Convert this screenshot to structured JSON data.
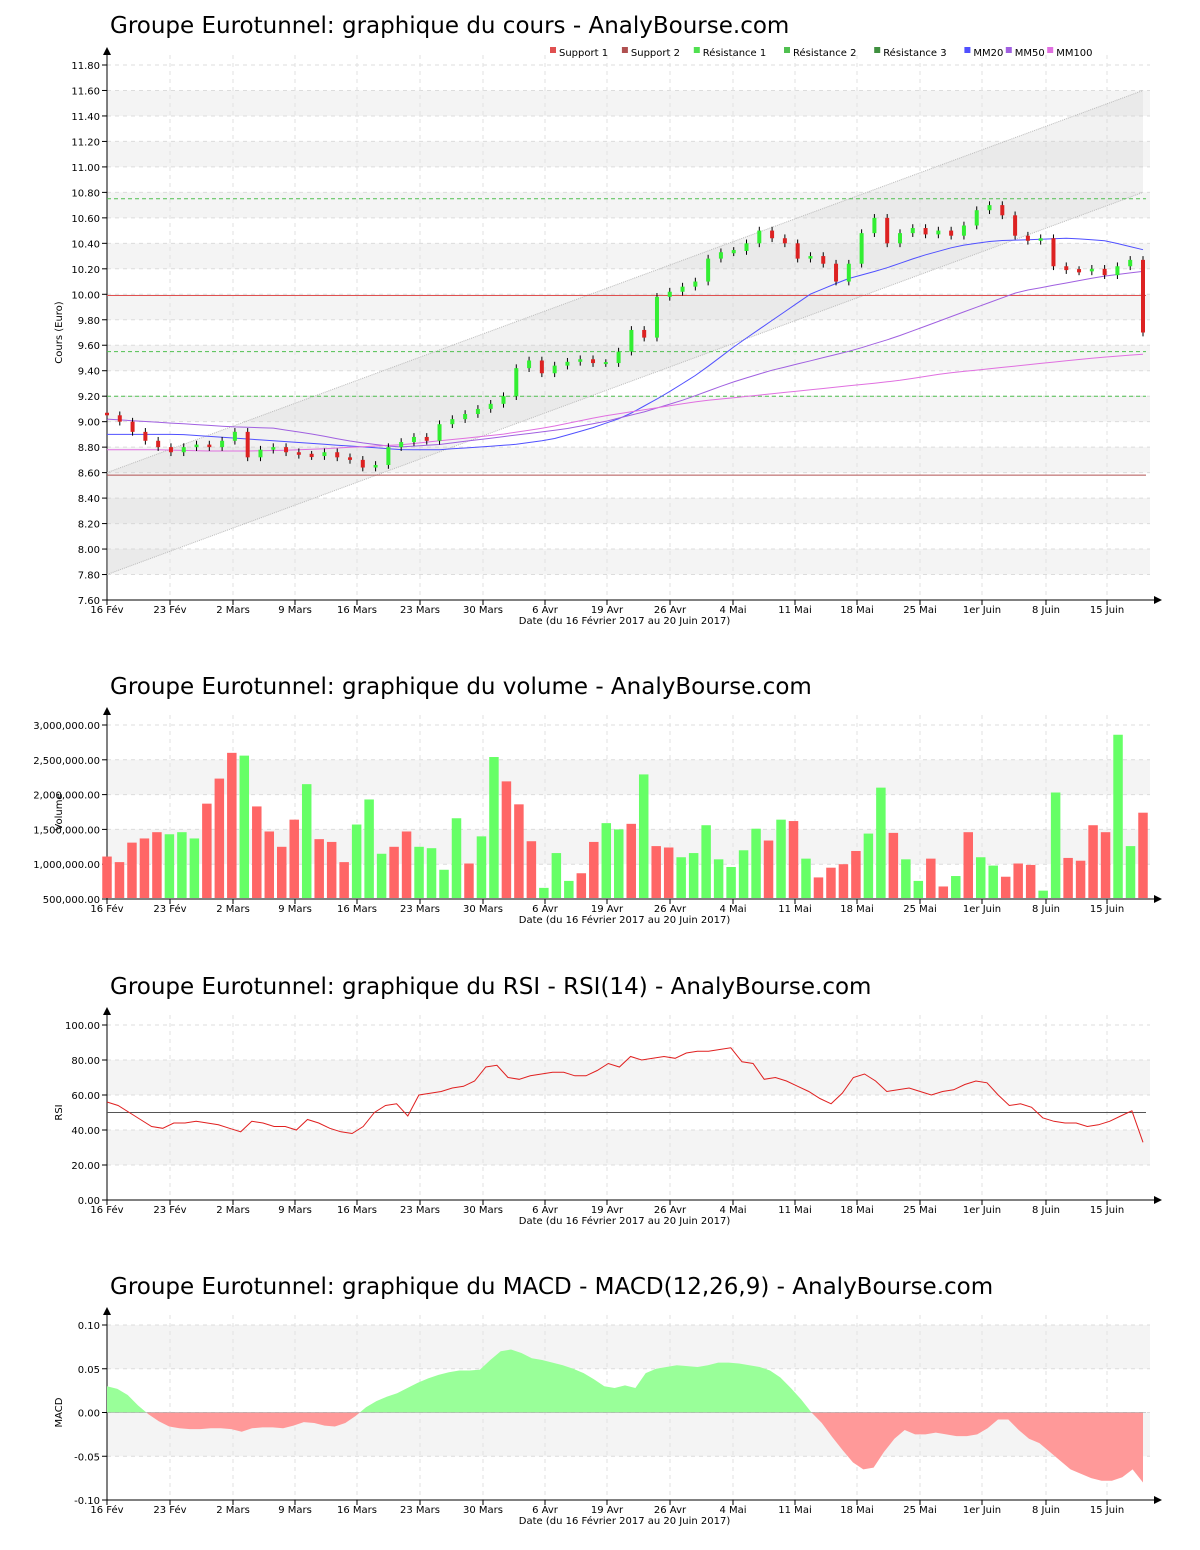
{
  "chart_data": [
    {
      "type": "candlestick",
      "title": "Groupe Eurotunnel: graphique du cours - AnalyBourse.com",
      "xlabel": "Date (du 16 Février 2017 au 20 Juin 2017)",
      "ylabel": "Cours (Euro)",
      "ylim": [
        7.6,
        11.8
      ],
      "yticks": [
        "7.60",
        "7.80",
        "8.00",
        "8.20",
        "8.40",
        "8.60",
        "8.80",
        "9.00",
        "9.20",
        "9.40",
        "9.60",
        "9.80",
        "10.00",
        "10.20",
        "10.40",
        "10.60",
        "10.80",
        "11.00",
        "11.20",
        "11.40",
        "11.60",
        "11.80"
      ],
      "x_tick_labels": [
        "16 Fév",
        "23 Fév",
        "2 Mars",
        "9 Mars",
        "16 Mars",
        "23 Mars",
        "30 Mars",
        "6 Avr",
        "19 Avr",
        "26 Avr",
        "4 Mai",
        "11 Mai",
        "18 Mai",
        "25 Mai",
        "1er Juin",
        "8 Juin",
        "15 Juin"
      ],
      "x_tick_index": [
        0,
        7,
        14,
        21,
        28,
        35,
        42,
        49,
        56,
        63,
        70,
        77,
        84,
        91,
        98,
        105,
        112
      ],
      "n": 118,
      "legend": [
        "Support 1",
        "Support 2",
        "Résistance 1",
        "Résistance 2",
        "Résistance 3",
        "MM20",
        "MM50",
        "MM100"
      ],
      "legend_colors": [
        "#e05050",
        "#b05050",
        "#50e050",
        "#50c050",
        "#409040",
        "#5050ff",
        "#a060e0",
        "#e070e0"
      ],
      "levels": [
        {
          "name": "Support 1",
          "value": 9.99,
          "color": "#e05050",
          "dashed": false
        },
        {
          "name": "Support 2",
          "value": 8.58,
          "color": "#b05050",
          "dashed": false
        },
        {
          "name": "Résistance 1",
          "value": 9.2,
          "color": "#50c050",
          "dashed": true
        },
        {
          "name": "Résistance 2",
          "value": 9.55,
          "color": "#50c050",
          "dashed": true
        },
        {
          "name": "Résistance 3",
          "value": 10.75,
          "color": "#50c050",
          "dashed": true
        }
      ],
      "channel": {
        "lower": [
          7.8,
          10.8
        ],
        "upper": [
          8.6,
          11.6
        ]
      },
      "close": [
        9.05,
        9.0,
        8.92,
        8.85,
        8.8,
        8.76,
        8.8,
        8.82,
        8.8,
        8.85,
        8.92,
        8.72,
        8.78,
        8.8,
        8.76,
        8.74,
        8.73,
        8.76,
        8.72,
        8.7,
        8.64,
        8.66,
        8.8,
        8.84,
        8.88,
        8.85,
        8.98,
        9.02,
        9.06,
        9.1,
        9.14,
        9.2,
        9.42,
        9.48,
        9.38,
        9.44,
        9.47,
        9.49,
        9.46,
        9.46,
        9.55,
        9.72,
        9.66,
        9.98,
        10.02,
        10.06,
        10.1,
        10.28,
        10.33,
        10.34,
        10.4,
        10.5,
        10.44,
        10.4,
        10.28,
        10.3,
        10.24,
        10.1,
        10.24,
        10.48,
        10.6,
        10.4,
        10.48,
        10.52,
        10.47,
        10.5,
        10.46,
        10.54,
        10.66,
        10.7,
        10.62,
        10.46,
        10.42,
        10.44,
        10.22,
        10.19,
        10.18,
        10.2,
        10.15,
        10.22,
        10.27,
        9.7
      ],
      "ma20": [
        8.9,
        8.9,
        8.9,
        8.88,
        8.86,
        8.84,
        8.82,
        8.8,
        8.78,
        8.78,
        8.8,
        8.82,
        8.86,
        8.94,
        9.04,
        9.2,
        9.38,
        9.6,
        9.8,
        10.0,
        10.12,
        10.2,
        10.3,
        10.38,
        10.42,
        10.43,
        10.44,
        10.42,
        10.35
      ],
      "ma50": [
        9.02,
        9.0,
        8.98,
        8.96,
        8.95,
        8.9,
        8.84,
        8.8,
        8.82,
        8.86,
        8.9,
        8.94,
        9.0,
        9.08,
        9.18,
        9.3,
        9.4,
        9.48,
        9.56,
        9.66,
        9.78,
        9.9,
        10.02,
        10.08,
        10.14,
        10.18
      ],
      "ma100": [
        8.78,
        8.78,
        8.77,
        8.77,
        8.78,
        8.8,
        8.82,
        8.86,
        8.9,
        8.96,
        9.04,
        9.1,
        9.16,
        9.2,
        9.24,
        9.28,
        9.32,
        9.38,
        9.42,
        9.46,
        9.5,
        9.53
      ]
    },
    {
      "type": "bar",
      "title": "Groupe Eurotunnel: graphique du volume - AnalyBourse.com",
      "xlabel": "Date (du 16 Février 2017 au 20 Juin 2017)",
      "ylabel": "Volume",
      "ylim": [
        500000,
        3000000
      ],
      "yticks": [
        "500,000.00",
        "1,000,000.00",
        "1,500,000.00",
        "2,000,000.00",
        "2,500,000.00",
        "3,000,000.00"
      ],
      "x_tick_labels": [
        "16 Fév",
        "23 Fév",
        "2 Mars",
        "9 Mars",
        "16 Mars",
        "23 Mars",
        "30 Mars",
        "6 Avr",
        "19 Avr",
        "26 Avr",
        "4 Mai",
        "11 Mai",
        "18 Mai",
        "25 Mai",
        "1er Juin",
        "8 Juin",
        "15 Juin"
      ],
      "values": [
        1110000,
        1030000,
        1310000,
        1370000,
        1460000,
        1430000,
        1460000,
        1370000,
        1870000,
        2230000,
        2600000,
        2560000,
        1830000,
        1470000,
        1250000,
        1640000,
        2150000,
        1360000,
        1320000,
        1030000,
        1570000,
        1930000,
        1150000,
        1250000,
        1470000,
        1250000,
        1230000,
        920000,
        1660000,
        1010000,
        1400000,
        2540000,
        2190000,
        1860000,
        1330000,
        660000,
        1160000,
        760000,
        870000,
        1320000,
        1590000,
        1500000,
        1580000,
        2290000,
        1260000,
        1240000,
        1100000,
        1160000,
        1560000,
        1070000,
        960000,
        1200000,
        1510000,
        1340000,
        1640000,
        1620000,
        1080000,
        810000,
        950000,
        1000000,
        1190000,
        1440000,
        2100000,
        1450000,
        1070000,
        760000,
        1080000,
        680000,
        830000,
        1460000,
        1100000,
        980000,
        820000,
        1010000,
        990000,
        620000,
        2030000,
        1090000,
        1050000,
        1560000,
        1460000,
        2860000,
        1260000,
        1740000
      ],
      "up": [
        0,
        0,
        0,
        0,
        0,
        1,
        1,
        1,
        0,
        0,
        0,
        1,
        0,
        0,
        0,
        0,
        1,
        0,
        0,
        0,
        1,
        1,
        1,
        0,
        0,
        1,
        1,
        1,
        1,
        0,
        1,
        1,
        0,
        0,
        0,
        1,
        1,
        1,
        0,
        0,
        1,
        1,
        0,
        1,
        0,
        0,
        1,
        1,
        1,
        1,
        1,
        1,
        1,
        0,
        1,
        0,
        1,
        0,
        0,
        0,
        0,
        1,
        1,
        0,
        1,
        1,
        0,
        0,
        1,
        0,
        1,
        1,
        0,
        0,
        0,
        1,
        1,
        0,
        0,
        0,
        0,
        1,
        1,
        0
      ],
      "colors": {
        "up": "#66ff66",
        "down": "#ff6666"
      }
    },
    {
      "type": "line",
      "title": "Groupe Eurotunnel: graphique du RSI - RSI(14) - AnalyBourse.com",
      "xlabel": "Date (du 16 Février 2017 au 20 Juin 2017)",
      "ylabel": "RSI",
      "ylim": [
        0,
        100
      ],
      "yticks": [
        "0.00",
        "20.00",
        "40.00",
        "60.00",
        "80.00",
        "100.00"
      ],
      "x_tick_labels": [
        "16 Fév",
        "23 Fév",
        "2 Mars",
        "9 Mars",
        "16 Mars",
        "23 Mars",
        "30 Mars",
        "6 Avr",
        "19 Avr",
        "26 Avr",
        "4 Mai",
        "11 Mai",
        "18 Mai",
        "25 Mai",
        "1er Juin",
        "8 Juin",
        "15 Juin"
      ],
      "reference": 50,
      "values": [
        56,
        54,
        50,
        46,
        42,
        41,
        44,
        44,
        45,
        44,
        43,
        41,
        39,
        45,
        44,
        42,
        42,
        40,
        46,
        44,
        41,
        39,
        38,
        42,
        50,
        54,
        55,
        48,
        60,
        61,
        62,
        64,
        65,
        68,
        76,
        77,
        70,
        69,
        71,
        72,
        73,
        73,
        71,
        71,
        74,
        78,
        76,
        82,
        80,
        81,
        82,
        81,
        84,
        85,
        85,
        86,
        87,
        79,
        78,
        69,
        70,
        68,
        65,
        62,
        58,
        55,
        61,
        70,
        72,
        68,
        62,
        63,
        64,
        62,
        60,
        62,
        63,
        66,
        68,
        67,
        60,
        54,
        55,
        53,
        47,
        45,
        44,
        44,
        42,
        43,
        45,
        48,
        51,
        33
      ]
    },
    {
      "type": "area",
      "title": "Groupe Eurotunnel: graphique du MACD - MACD(12,26,9) - AnalyBourse.com",
      "xlabel": "Date (du 16 Février 2017 au 20 Juin 2017)",
      "ylabel": "MACD",
      "ylim": [
        -0.1,
        0.1
      ],
      "yticks": [
        "-0.10",
        "-0.05",
        "0.00",
        "0.05",
        "0.10"
      ],
      "x_tick_labels": [
        "16 Fév",
        "23 Fév",
        "2 Mars",
        "9 Mars",
        "16 Mars",
        "23 Mars",
        "30 Mars",
        "6 Avr",
        "19 Avr",
        "26 Avr",
        "4 Mai",
        "11 Mai",
        "18 Mai",
        "25 Mai",
        "1er Juin",
        "8 Juin",
        "15 Juin"
      ],
      "values": [
        0.03,
        0.027,
        0.02,
        0.008,
        -0.002,
        -0.01,
        -0.016,
        -0.018,
        -0.019,
        -0.019,
        -0.018,
        -0.018,
        -0.019,
        -0.022,
        -0.018,
        -0.017,
        -0.017,
        -0.018,
        -0.015,
        -0.011,
        -0.012,
        -0.015,
        -0.016,
        -0.012,
        -0.004,
        0.006,
        0.013,
        0.018,
        0.022,
        0.028,
        0.034,
        0.039,
        0.043,
        0.046,
        0.048,
        0.048,
        0.049,
        0.06,
        0.07,
        0.072,
        0.068,
        0.062,
        0.06,
        0.057,
        0.054,
        0.05,
        0.045,
        0.038,
        0.03,
        0.028,
        0.031,
        0.028,
        0.045,
        0.05,
        0.052,
        0.054,
        0.053,
        0.052,
        0.054,
        0.057,
        0.057,
        0.056,
        0.054,
        0.052,
        0.048,
        0.04,
        0.028,
        0.015,
        0.0,
        -0.012,
        -0.028,
        -0.043,
        -0.057,
        -0.065,
        -0.063,
        -0.045,
        -0.03,
        -0.02,
        -0.025,
        -0.025,
        -0.023,
        -0.025,
        -0.027,
        -0.027,
        -0.025,
        -0.018,
        -0.008,
        -0.008,
        -0.02,
        -0.03,
        -0.035,
        -0.045,
        -0.055,
        -0.065,
        -0.07,
        -0.075,
        -0.078,
        -0.078,
        -0.074,
        -0.065,
        -0.08
      ],
      "colors": {
        "pos": "#99ff99",
        "neg": "#ff9999"
      }
    }
  ]
}
